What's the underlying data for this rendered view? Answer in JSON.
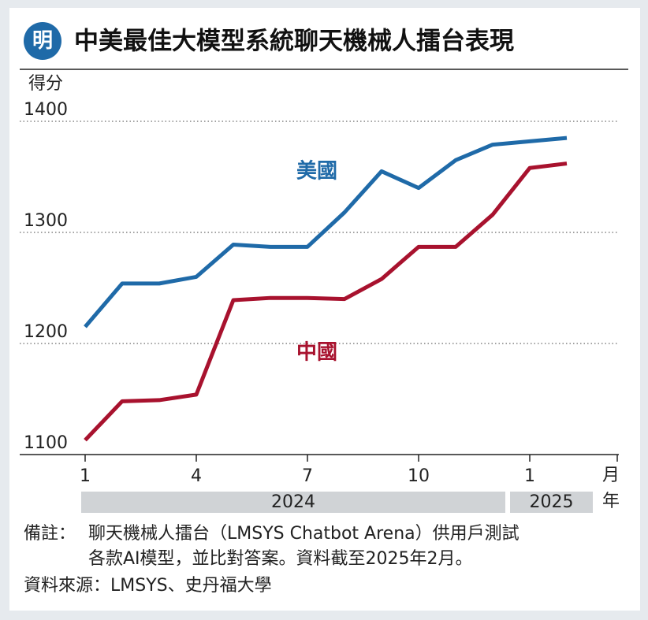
{
  "chart_data": {
    "type": "line",
    "title": "中美最佳大模型系統聊天機械人擂台表現",
    "logo": "明",
    "y_axis_label": "得分",
    "x_axis_unit": "月",
    "group_unit": "年",
    "categories": [
      "1",
      null,
      null,
      "4",
      null,
      null,
      "7",
      null,
      null,
      "10",
      null,
      null,
      "1",
      null
    ],
    "x_groups": [
      "2024",
      "2025"
    ],
    "series": [
      {
        "name": "美國",
        "color": "#1f6aa8",
        "values": [
          1215,
          1254,
          1254,
          1260,
          1289,
          1287,
          1287,
          1318,
          1355,
          1340,
          1365,
          1379,
          1382,
          1385
        ]
      },
      {
        "name": "中國",
        "color": "#a8122e",
        "values": [
          1113,
          1148,
          1149,
          1154,
          1239,
          1241,
          1241,
          1240,
          1258,
          1287,
          1287,
          1316,
          1358,
          1362
        ]
      }
    ],
    "ylim": [
      1100,
      1400
    ],
    "yticks": [
      1100,
      1200,
      1300,
      1400
    ],
    "grid": true,
    "notes_label": "備註：",
    "notes": [
      "聊天機械人擂台（LMSYS Chatbot Arena）供用戶測試",
      "各款AI模型，並比對答案。資料截至2025年2月。"
    ],
    "source": "資料來源：LMSYS、史丹福大學"
  }
}
